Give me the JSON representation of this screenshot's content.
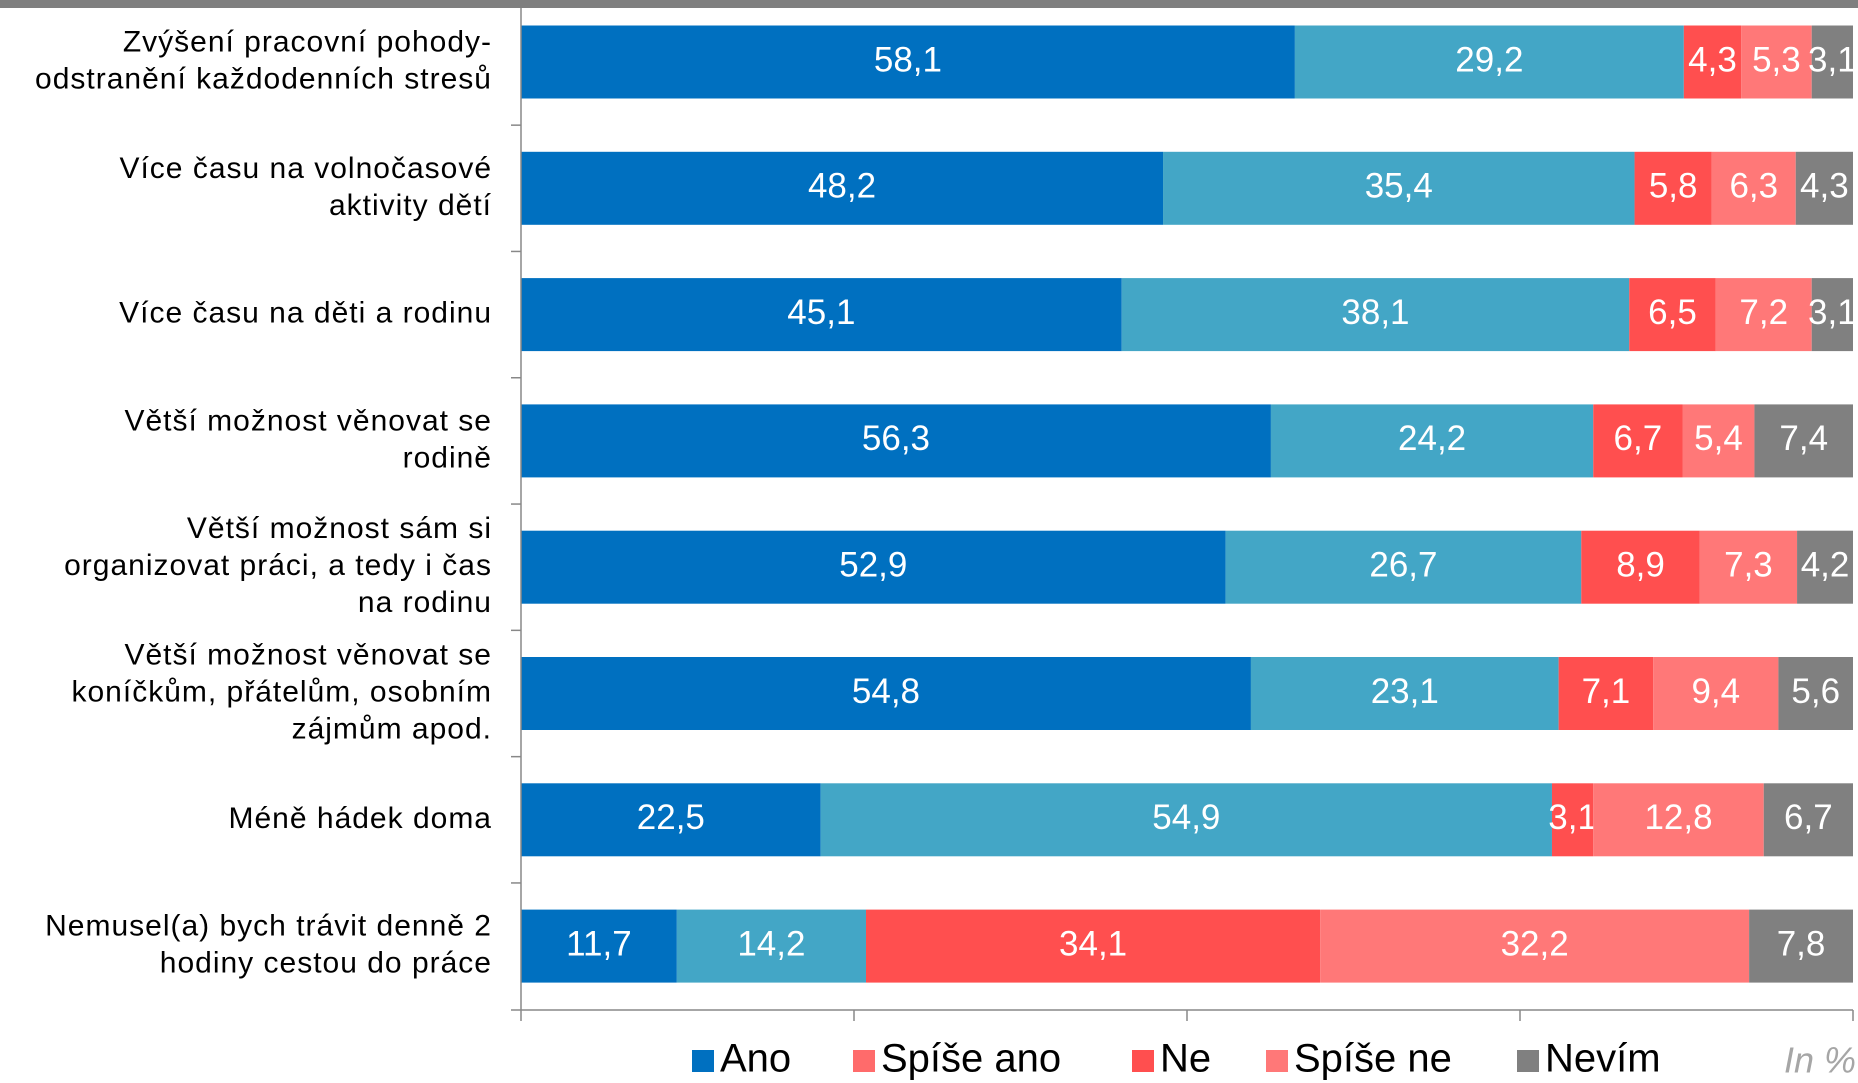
{
  "chart_data": {
    "type": "stacked_barh",
    "note": "In %",
    "categories": [
      "Zvýšení pracovní pohody-\nodstranění každodenních stresů",
      "Více času na volnočasové\naktivity dětí",
      "Více času na děti a rodinu",
      "Větší možnost věnovat se\nrodině",
      "Větší možnost sám si\norganizovat práci, a tedy i čas\nna rodinu",
      "Větší možnost věnovat se\nkoníčkům, přátelům, osobním\nzájmům apod.",
      "Méně hádek doma",
      "Nemusel(a) bych trávit denně 2\nhodiny cestou do práce"
    ],
    "series": [
      {
        "name": "Ano",
        "color": "#0070c0",
        "legend_color": "#0070c0",
        "values": [
          58.1,
          48.2,
          45.1,
          56.3,
          52.9,
          54.8,
          22.5,
          11.7
        ],
        "value_labels": [
          "58,1",
          "48,2",
          "45,1",
          "56,3",
          "52,9",
          "54,8",
          "22,5",
          "11,7"
        ]
      },
      {
        "name": "Spíše ano",
        "color": "#43a6c6",
        "legend_color": "#ff6b6b",
        "values": [
          29.2,
          35.4,
          38.1,
          24.2,
          26.7,
          23.1,
          54.9,
          14.2
        ],
        "value_labels": [
          "29,2",
          "35,4",
          "38,1",
          "24,2",
          "26,7",
          "23,1",
          "54,9",
          "14,2"
        ]
      },
      {
        "name": "Ne",
        "color": "#ff4f4f",
        "legend_color": "#ff4f4f",
        "values": [
          4.3,
          5.8,
          6.5,
          6.7,
          8.9,
          7.1,
          3.1,
          34.1
        ],
        "value_labels": [
          "4,3",
          "5,8",
          "6,5",
          "6,7",
          "8,9",
          "7,1",
          "3,1",
          "34,1"
        ]
      },
      {
        "name": "Spíše ne",
        "color": "#ff7878",
        "legend_color": "#ff7878",
        "values": [
          5.3,
          6.3,
          7.2,
          5.4,
          7.3,
          9.4,
          12.8,
          32.2
        ],
        "value_labels": [
          "5,3",
          "6,3",
          "7,2",
          "5,4",
          "7,3",
          "9,4",
          "12,8",
          "32,2"
        ]
      },
      {
        "name": "Nevím",
        "color": "#808080",
        "legend_color": "#808080",
        "values": [
          3.1,
          4.3,
          3.1,
          7.4,
          4.2,
          5.6,
          6.7,
          7.8
        ],
        "value_labels": [
          "3,1",
          "4,3",
          "3,1",
          "7,4",
          "4,2",
          "5,6",
          "6,7",
          "7,8"
        ]
      }
    ],
    "xlim": [
      0,
      100
    ],
    "xticks": [
      0,
      25,
      50,
      75,
      100
    ]
  }
}
